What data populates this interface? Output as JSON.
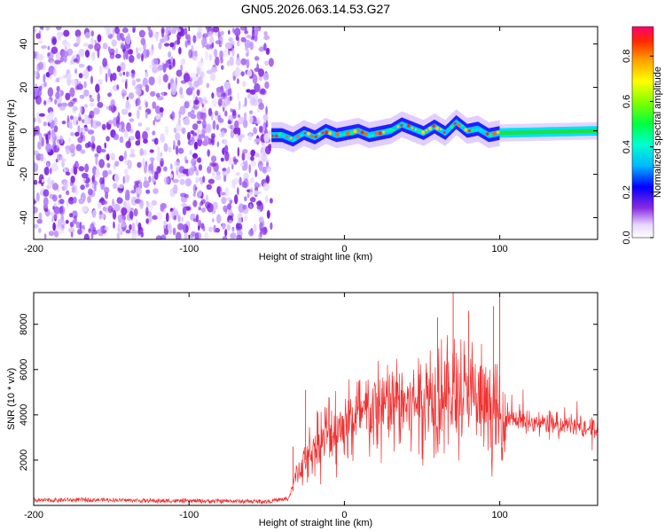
{
  "chart_data": [
    {
      "type": "heatmap",
      "title": "GN05.2026.063.14.53.G27",
      "xlabel": "Height of straight line (km)",
      "ylabel": "Frequency (Hz)",
      "xlim": [
        -200,
        163
      ],
      "ylim": [
        -50,
        48
      ],
      "xticks": [
        -200,
        -100,
        0,
        100
      ],
      "yticks": [
        -40,
        -20,
        0,
        20,
        40
      ],
      "colorbar": {
        "label": "Normalized spectral amplitude",
        "range": [
          0.0,
          0.93
        ],
        "ticks": [
          0.0,
          0.2,
          0.4,
          0.6,
          0.8
        ]
      },
      "noise_region": {
        "from_km": -200,
        "to_km": -47
      },
      "signal_track": {
        "x": [
          -47,
          -40,
          -33,
          -26,
          -19,
          -12,
          -5,
          2,
          9,
          16,
          23,
          30,
          37,
          44,
          51,
          58,
          65,
          72,
          79,
          86,
          93,
          100,
          163
        ],
        "freq_hz": [
          -2,
          -2,
          -4,
          -1,
          -3,
          0,
          -2,
          -1,
          0,
          -2,
          -1,
          0,
          3,
          1,
          -1,
          2,
          -1,
          4,
          0,
          1,
          -2,
          -1,
          0
        ]
      }
    },
    {
      "type": "line",
      "title": "",
      "xlabel": "Height of straight line (km)",
      "ylabel": "SNR (10 * v/v)",
      "xlim": [
        -200,
        163
      ],
      "ylim": [
        0,
        9400
      ],
      "xticks": [
        -200,
        -100,
        0,
        100
      ],
      "yticks": [
        2000,
        4000,
        6000,
        8000
      ],
      "color": "#f03030",
      "series": [
        {
          "name": "SNR",
          "x": [
            -200,
            -160,
            -120,
            -80,
            -50,
            -36,
            -30,
            -20,
            -10,
            0,
            10,
            20,
            30,
            40,
            50,
            60,
            70,
            80,
            90,
            100,
            110,
            130,
            163
          ],
          "y": [
            220,
            250,
            200,
            190,
            170,
            300,
            1500,
            2500,
            3200,
            3600,
            3900,
            4200,
            4400,
            4500,
            4700,
            5000,
            4900,
            4800,
            4400,
            3800,
            3800,
            3600,
            3400
          ],
          "peaks": [
            [
              -33,
              2600
            ],
            [
              -25,
              5100
            ],
            [
              60,
              8300
            ],
            [
              70,
              9400
            ],
            [
              80,
              8600
            ],
            [
              100,
              9200
            ],
            [
              96,
              8800
            ]
          ]
        }
      ]
    }
  ]
}
